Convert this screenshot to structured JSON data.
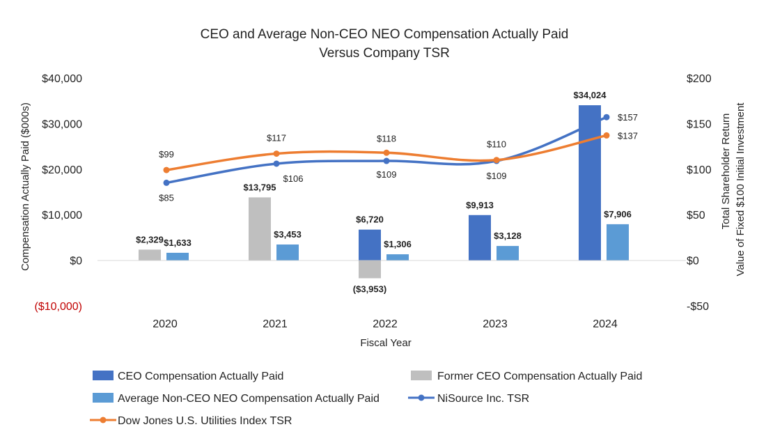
{
  "chart_data": {
    "type": "bar+line",
    "title_line1": "CEO and Average Non-CEO NEO Compensation Actually Paid",
    "title_line2": "Versus Company TSR",
    "xlabel": "Fiscal Year",
    "ylabel": "Compensation Actually Paid ($000s)",
    "y2label_line1": "Total Shareholder Return",
    "y2label_line2": "Value of Fixed $100 Initial Investment",
    "categories": [
      "2020",
      "2021",
      "2022",
      "2023",
      "2024"
    ],
    "ylim": [
      -10000,
      40000
    ],
    "y2lim": [
      -50,
      200
    ],
    "y_ticks": [
      {
        "value": 40000,
        "label": "$40,000"
      },
      {
        "value": 30000,
        "label": "$30,000"
      },
      {
        "value": 20000,
        "label": "$20,000"
      },
      {
        "value": 10000,
        "label": "$10,000"
      },
      {
        "value": 0,
        "label": "$0"
      },
      {
        "value": -10000,
        "label": "($10,000)"
      }
    ],
    "y2_ticks": [
      {
        "value": 200,
        "label": "$200"
      },
      {
        "value": 150,
        "label": "$150"
      },
      {
        "value": 100,
        "label": "$100"
      },
      {
        "value": 50,
        "label": "$50"
      },
      {
        "value": 0,
        "label": "$0"
      },
      {
        "value": -50,
        "label": "-$50"
      }
    ],
    "bar_series": [
      {
        "key": "ceo",
        "name": "CEO Compensation Actually Paid",
        "color": "#4472c4",
        "slot": 0,
        "values": [
          null,
          null,
          6720,
          9913,
          34024
        ],
        "labels": [
          "",
          "",
          "$6,720",
          "$9,913",
          "$34,024"
        ]
      },
      {
        "key": "former",
        "name": "Former CEO Compensation Actually Paid",
        "color": "#bfbfbf",
        "slot": 0,
        "values": [
          2329,
          13795,
          -3953,
          null,
          null
        ],
        "labels": [
          "$2,329",
          "$13,795",
          "($3,953)",
          "",
          ""
        ]
      },
      {
        "key": "neo",
        "name": "Average Non-CEO NEO Compensation Actually Paid",
        "color": "#5b9bd5",
        "slot": 1,
        "values": [
          1633,
          3453,
          1306,
          3128,
          7906
        ],
        "labels": [
          "$1,633",
          "$3,453",
          "$1,306",
          "$3,128",
          "$7,906"
        ]
      }
    ],
    "line_series": [
      {
        "key": "ni",
        "name": "NiSource Inc. TSR",
        "color": "#4472c4",
        "values": [
          85,
          106,
          109,
          109,
          157
        ],
        "labels": [
          "$85",
          "$106",
          "$109",
          "$109",
          "$157"
        ]
      },
      {
        "key": "dj",
        "name": "Dow Jones U.S. Utilities Index TSR",
        "color": "#ed7d31",
        "values": [
          99,
          117,
          118,
          110,
          137
        ],
        "labels": [
          "$99",
          "$117",
          "$118",
          "$110",
          "$137"
        ]
      }
    ],
    "legend_position": "bottom",
    "grid": false
  }
}
